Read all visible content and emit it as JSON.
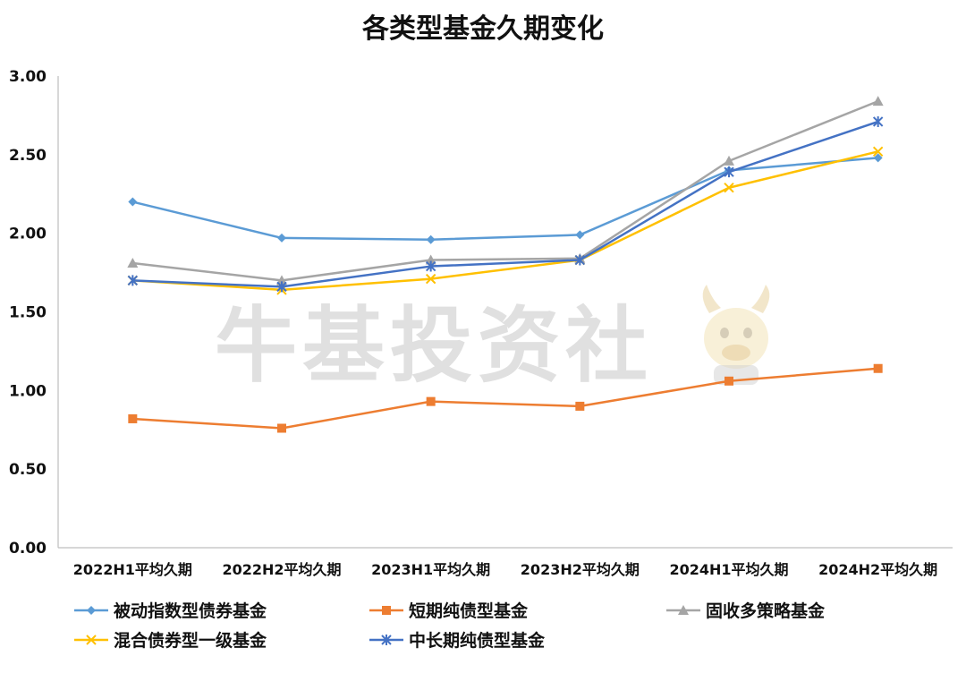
{
  "chart_data": {
    "type": "line",
    "title": "各类型基金久期变化",
    "categories": [
      "2022H1平均久期",
      "2022H2平均久期",
      "2023H1平均久期",
      "2023H2平均久期",
      "2024H1平均久期",
      "2024H2平均久期"
    ],
    "ylim": [
      0,
      3
    ],
    "yticks": [
      "0.00",
      "0.50",
      "1.00",
      "1.50",
      "2.00",
      "2.50",
      "3.00"
    ],
    "grid": false,
    "legend_position": "bottom",
    "watermark": "牛基投资社",
    "series": [
      {
        "name": "被动指数型债券基金",
        "color": "#5b9bd5",
        "marker": "diamond",
        "values": [
          2.2,
          1.97,
          1.96,
          1.99,
          2.4,
          2.48
        ]
      },
      {
        "name": "短期纯债型基金",
        "color": "#ed7d31",
        "marker": "square",
        "values": [
          0.82,
          0.76,
          0.93,
          0.9,
          1.06,
          1.14
        ]
      },
      {
        "name": "固收多策略基金",
        "color": "#a5a5a5",
        "marker": "triangle",
        "values": [
          1.81,
          1.7,
          1.83,
          1.84,
          2.46,
          2.84
        ]
      },
      {
        "name": "混合债券型一级基金",
        "color": "#ffc000",
        "marker": "x",
        "values": [
          1.7,
          1.64,
          1.71,
          1.83,
          2.29,
          2.52
        ]
      },
      {
        "name": "中长期纯债型基金",
        "color": "#4472c4",
        "marker": "star",
        "values": [
          1.7,
          1.66,
          1.79,
          1.83,
          2.39,
          2.71
        ]
      }
    ]
  }
}
